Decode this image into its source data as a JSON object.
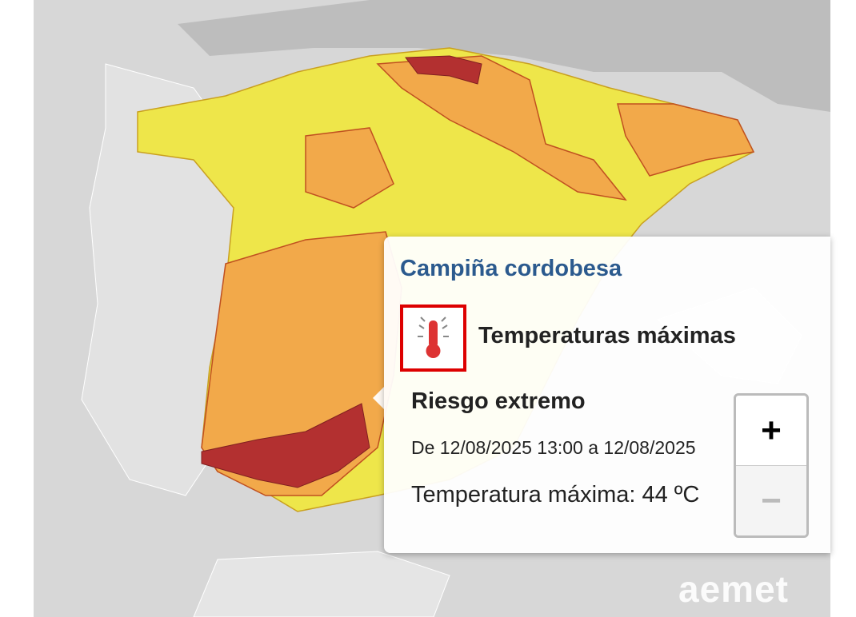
{
  "popup": {
    "title": "Campiña cordobesa",
    "phenomenon": "Temperaturas máximas",
    "level": "Riesgo extremo",
    "period": "De 12/08/2025 13:00 a 12/08/2025",
    "detail": "Temperatura máxima: 44 ºC"
  },
  "zoom": {
    "in": "+",
    "out": "−"
  },
  "logo": "aemet"
}
